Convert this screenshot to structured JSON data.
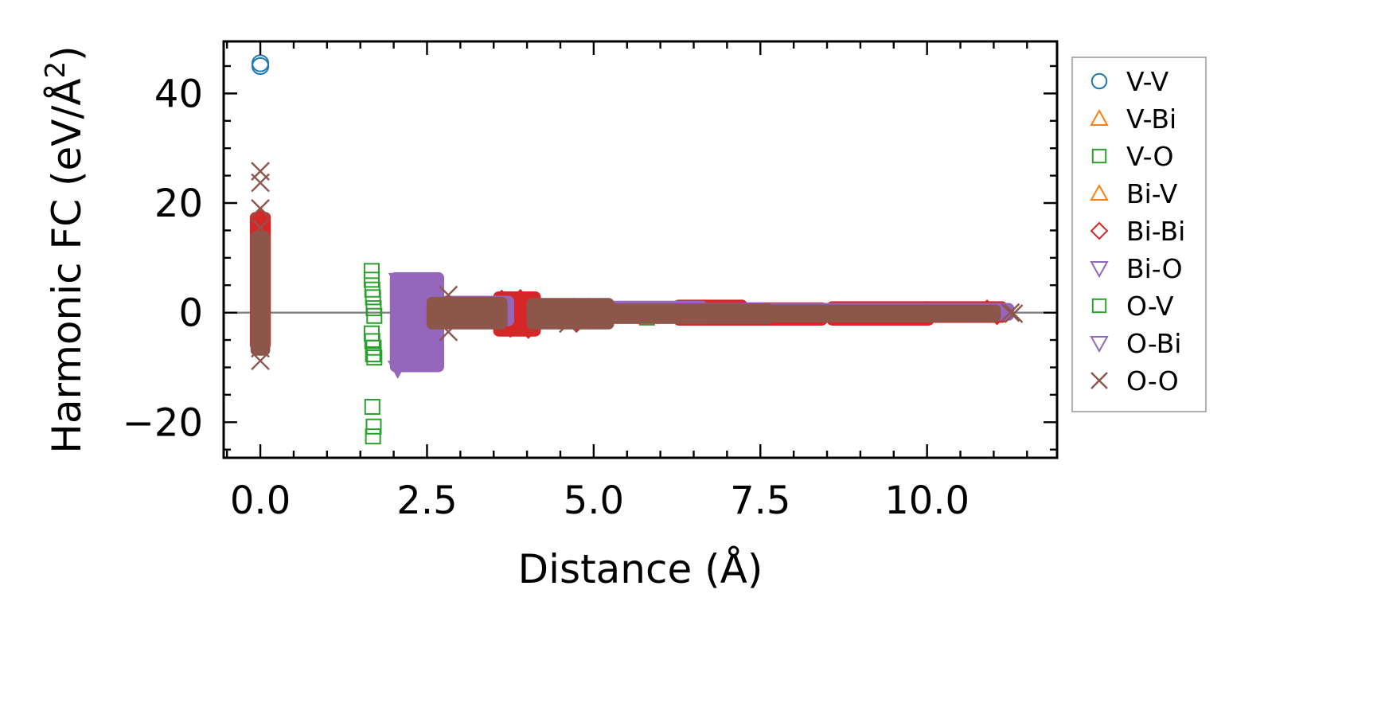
{
  "chart_data": {
    "type": "scatter",
    "xlabel": "Distance (Å)",
    "ylabel": "Harmonic FC (eV/Å",
    "ylabel_sup": "2",
    "ylabel_close": ")",
    "xlim": [
      -0.55,
      11.95
    ],
    "ylim": [
      -26.5,
      49.5
    ],
    "xticks": [
      {
        "value": 0.0,
        "label": "0.0"
      },
      {
        "value": 2.5,
        "label": "2.5"
      },
      {
        "value": 5.0,
        "label": "5.0"
      },
      {
        "value": 7.5,
        "label": "7.5"
      },
      {
        "value": 10.0,
        "label": "10.0"
      }
    ],
    "yticks": [
      {
        "value": -20,
        "label": "−20"
      },
      {
        "value": 0,
        "label": "0"
      },
      {
        "value": 20,
        "label": "20"
      },
      {
        "value": 40,
        "label": "40"
      }
    ],
    "zero_line": true,
    "legend_position": "outside-right",
    "series": [
      {
        "name": "V-V",
        "marker": "circle",
        "color": "#1f77b4",
        "points": [
          [
            0.0,
            45.5
          ],
          [
            0.0,
            45.0
          ]
        ]
      },
      {
        "name": "V-Bi",
        "marker": "triangle-up",
        "color": "#ff7f0e",
        "points": []
      },
      {
        "name": "V-O",
        "marker": "square",
        "color": "#2ca02c",
        "points": [
          [
            1.67,
            7.6
          ],
          [
            1.67,
            6.0
          ],
          [
            1.68,
            4.2
          ],
          [
            1.69,
            2.8
          ],
          [
            1.7,
            0.8
          ],
          [
            1.71,
            -0.6
          ],
          [
            1.67,
            -3.8
          ],
          [
            1.68,
            -5.2
          ],
          [
            1.7,
            -6.4
          ],
          [
            1.69,
            -7.6
          ],
          [
            1.71,
            -8.2
          ],
          [
            1.68,
            -17.2
          ],
          [
            1.7,
            -20.8
          ],
          [
            1.69,
            -22.6
          ],
          [
            5.8,
            -0.2
          ],
          [
            5.8,
            -0.9
          ]
        ]
      },
      {
        "name": "Bi-V",
        "marker": "triangle-up",
        "color": "#ff7f0e",
        "points": []
      },
      {
        "name": "Bi-Bi",
        "marker": "diamond",
        "color": "#d62728",
        "bands": [
          {
            "x": [
              -0.05,
              0.05
            ],
            "ymin": -6,
            "ymax": 17.5
          },
          {
            "x": [
              3.6,
              4.1
            ],
            "ymin": -3.5,
            "ymax": 3
          },
          {
            "x": [
              4.6,
              5.0
            ],
            "ymin": -2,
            "ymax": 1.5
          },
          {
            "x": [
              6.3,
              7.2
            ],
            "ymin": -1.5,
            "ymax": 1.5
          },
          {
            "x": [
              7.2,
              8.4
            ],
            "ymin": -1.5,
            "ymax": 1
          },
          {
            "x": [
              8.6,
              10.0
            ],
            "ymin": -1.5,
            "ymax": 1.2
          },
          {
            "x": [
              10.0,
              11.1
            ],
            "ymin": -1,
            "ymax": 1.2
          }
        ],
        "points": [
          [
            0.0,
            17.5
          ],
          [
            0.0,
            16.5
          ],
          [
            0.0,
            14.0
          ],
          [
            0.0,
            11.5
          ],
          [
            0.0,
            9.0
          ],
          [
            0.0,
            6.0
          ],
          [
            0.0,
            3.0
          ],
          [
            0.0,
            0.5
          ],
          [
            0.0,
            -2.5
          ],
          [
            0.0,
            -5.0
          ],
          [
            3.62,
            2.4
          ],
          [
            3.75,
            -2.8
          ],
          [
            3.9,
            2.5
          ],
          [
            4.02,
            -3.0
          ],
          [
            4.1,
            1.2
          ],
          [
            4.75,
            -1.8
          ],
          [
            10.9,
            0.6
          ],
          [
            11.05,
            -0.5
          ]
        ]
      },
      {
        "name": "Bi-O",
        "marker": "triangle-down",
        "color": "#9467bd",
        "bands": [
          {
            "x": [
              2.05,
              2.65
            ],
            "ymin": -10,
            "ymax": 6.5
          },
          {
            "x": [
              2.6,
              3.7
            ],
            "ymin": -1.6,
            "ymax": 2.2
          },
          {
            "x": [
              4.1,
              5.2
            ],
            "ymin": -1.0,
            "ymax": 1.6
          },
          {
            "x": [
              5.2,
              6.6
            ],
            "ymin": -0.8,
            "ymax": 1.3
          },
          {
            "x": [
              6.6,
              11.2
            ],
            "ymin": -0.6,
            "ymax": 0.9
          }
        ],
        "points": [
          [
            2.07,
            5.8
          ],
          [
            2.12,
            5.6
          ],
          [
            2.2,
            5.8
          ],
          [
            2.06,
            -10.2
          ],
          [
            2.1,
            -9.2
          ],
          [
            2.15,
            -7.6
          ],
          [
            2.2,
            -6.0
          ],
          [
            2.3,
            -4.0
          ],
          [
            2.4,
            -2.8
          ],
          [
            4.35,
            -0.4
          ],
          [
            5.6,
            0.5
          ],
          [
            7.4,
            0.4
          ],
          [
            9.0,
            0.3
          ],
          [
            10.8,
            0.1
          ]
        ]
      },
      {
        "name": "O-V",
        "marker": "square",
        "color": "#2ca02c",
        "points": []
      },
      {
        "name": "O-Bi",
        "marker": "triangle-down",
        "color": "#9467bd",
        "points": []
      },
      {
        "name": "O-O",
        "marker": "x",
        "color": "#8c564b",
        "bands": [
          {
            "x": [
              -0.04,
              0.04
            ],
            "ymin": -7,
            "ymax": 14
          },
          {
            "x": [
              2.6,
              3.6
            ],
            "ymin": -2.2,
            "ymax": 2.0
          },
          {
            "x": [
              4.1,
              5.2
            ],
            "ymin": -2.2,
            "ymax": 1.8
          },
          {
            "x": [
              5.2,
              7.6
            ],
            "ymin": -1.2,
            "ymax": 0.8
          },
          {
            "x": [
              7.6,
              11.0
            ],
            "ymin": -0.9,
            "ymax": 0.6
          }
        ],
        "points": [
          [
            0.0,
            25.8
          ],
          [
            0.0,
            23.7
          ],
          [
            0.0,
            19.0
          ],
          [
            0.0,
            15.5
          ],
          [
            0.0,
            12.0
          ],
          [
            0.0,
            8.0
          ],
          [
            0.0,
            -3.0
          ],
          [
            0.0,
            -6.5
          ],
          [
            0.0,
            -8.8
          ],
          [
            2.82,
            3.2
          ],
          [
            2.82,
            -3.5
          ],
          [
            4.6,
            0.9
          ],
          [
            4.62,
            -2.0
          ],
          [
            4.82,
            1.0
          ],
          [
            4.82,
            -1.4
          ],
          [
            11.25,
            0.0
          ],
          [
            11.3,
            -0.2
          ]
        ]
      }
    ]
  }
}
